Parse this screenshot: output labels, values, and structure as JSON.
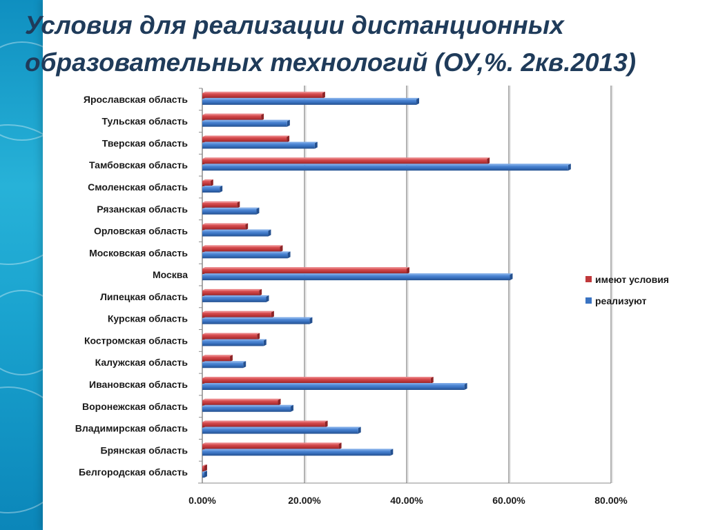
{
  "slide": {
    "title_line1": "Условия для реализации дистанционных",
    "title_line2": "образовательных технологий (ОУ,%. 2кв.2013)"
  },
  "colors": {
    "side_strip": "#1aa3cf",
    "title": "#1f3b5a",
    "series_red": "#c0383b",
    "series_blue": "#3a73c2"
  },
  "chart_data": {
    "type": "bar",
    "orientation": "horizontal",
    "categories": [
      "Ярославская область",
      "Тульская область",
      "Тверская область",
      "Тамбовская область",
      "Смоленская область",
      "Рязанская область",
      "Орловская область",
      "Московская область",
      "Москва",
      "Липецкая область",
      "Курская область",
      "Костромская область",
      "Калужская область",
      "Ивановская область",
      "Воронежская область",
      "Владимирская область",
      "Брянская область",
      "Белгородская область"
    ],
    "series": [
      {
        "name": "имеют условия",
        "color": "#c0383b",
        "values": [
          23.5,
          11.5,
          16.5,
          55.7,
          1.6,
          6.8,
          8.4,
          15.2,
          40.0,
          11.1,
          13.5,
          10.7,
          5.4,
          44.7,
          14.8,
          24.0,
          26.7,
          0.4
        ]
      },
      {
        "name": "реализуют",
        "color": "#3a73c2",
        "values": [
          41.9,
          16.6,
          22.0,
          71.6,
          3.4,
          10.6,
          12.9,
          16.7,
          60.2,
          12.5,
          21.0,
          12.0,
          8.0,
          51.3,
          17.3,
          30.5,
          36.8,
          0.4
        ]
      }
    ],
    "xlim": [
      0,
      80
    ],
    "x_ticks": [
      "0.00%",
      "20.00%",
      "40.00%",
      "60.00%",
      "80.00%"
    ],
    "x_tick_values": [
      0,
      20,
      40,
      60,
      80
    ],
    "grid": true,
    "legend_position": "right"
  }
}
